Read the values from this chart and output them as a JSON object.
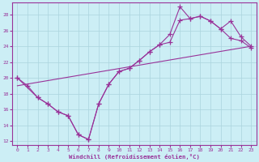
{
  "bg_color": "#cceef5",
  "grid_color": "#aad4de",
  "line_color": "#993399",
  "xlabel": "Windchill (Refroidissement éolien,°C)",
  "xlim": [
    -0.5,
    23.5
  ],
  "ylim": [
    11.5,
    29.5
  ],
  "xticks": [
    0,
    1,
    2,
    3,
    4,
    5,
    6,
    7,
    8,
    9,
    10,
    11,
    12,
    13,
    14,
    15,
    16,
    17,
    18,
    19,
    20,
    21,
    22,
    23
  ],
  "yticks": [
    12,
    14,
    16,
    18,
    20,
    22,
    24,
    26,
    28
  ],
  "line1_x": [
    0,
    1,
    2,
    3,
    4,
    5,
    6,
    7,
    8,
    9,
    10,
    11,
    12,
    13,
    14,
    15,
    16,
    17,
    18,
    19,
    20,
    21,
    22,
    23
  ],
  "line1_y": [
    20.0,
    19.0,
    17.5,
    16.7,
    15.7,
    15.2,
    12.8,
    12.2,
    16.7,
    19.2,
    20.8,
    21.2,
    22.2,
    23.3,
    24.2,
    24.5,
    27.3,
    27.5,
    27.8,
    27.2,
    26.2,
    25.0,
    24.7,
    23.8
  ],
  "line2_x": [
    0,
    2,
    3,
    4,
    5,
    6,
    7,
    8,
    9,
    10,
    11,
    12,
    13,
    14,
    15,
    16,
    17,
    18,
    19,
    20,
    21,
    22,
    23
  ],
  "line2_y": [
    20.0,
    17.5,
    16.7,
    15.7,
    15.2,
    12.8,
    12.2,
    16.7,
    19.2,
    20.8,
    21.2,
    22.2,
    23.3,
    24.2,
    25.5,
    29.0,
    27.5,
    27.8,
    27.2,
    26.2,
    27.2,
    25.2,
    24.0
  ],
  "trend_x": [
    0,
    23
  ],
  "trend_y": [
    19.0,
    24.0
  ]
}
